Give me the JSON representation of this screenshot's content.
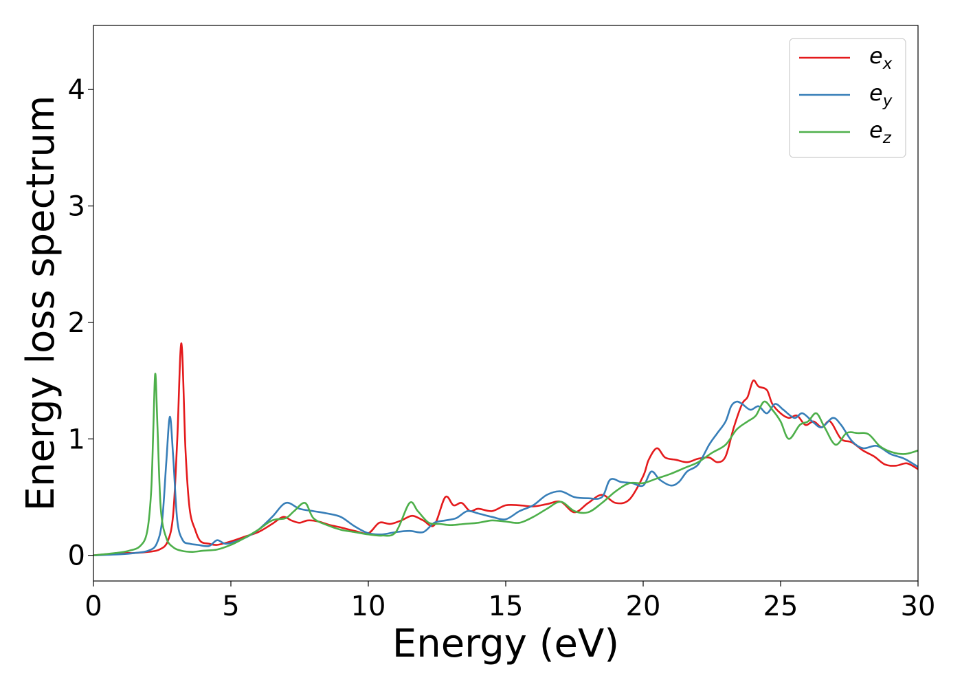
{
  "chart_data": {
    "type": "line",
    "title": "",
    "xlabel": "Energy (eV)",
    "ylabel": "Energy loss spectrum",
    "xlim": [
      0,
      30
    ],
    "ylim": [
      -0.22,
      4.55
    ],
    "xticks": [
      0,
      5,
      10,
      15,
      20,
      25,
      30
    ],
    "xtick_labels": [
      "0",
      "5",
      "10",
      "15",
      "20",
      "25",
      "30"
    ],
    "yticks": [
      0,
      1,
      2,
      3,
      4
    ],
    "ytick_labels": [
      "0",
      "1",
      "2",
      "3",
      "4"
    ],
    "grid": false,
    "legend_position": "top-right",
    "series": [
      {
        "name": "e",
        "subscript": "x",
        "color": "#e41a1c",
        "x": [
          0,
          1,
          1.5,
          2,
          2.4,
          2.7,
          2.9,
          3.05,
          3.2,
          3.35,
          3.5,
          3.7,
          3.9,
          4.2,
          4.5,
          5,
          5.5,
          6,
          6.5,
          6.9,
          7.2,
          7.5,
          7.8,
          8.2,
          8.6,
          9,
          9.5,
          10,
          10.4,
          10.8,
          11.2,
          11.6,
          12,
          12.4,
          12.8,
          13.1,
          13.4,
          13.7,
          14,
          14.5,
          15,
          15.5,
          16,
          16.5,
          17,
          17.5,
          18,
          18.5,
          19,
          19.5,
          20,
          20.2,
          20.5,
          20.8,
          21.2,
          21.6,
          22,
          22.4,
          22.7,
          23,
          23.3,
          23.6,
          23.8,
          24,
          24.2,
          24.5,
          24.7,
          25,
          25.3,
          25.6,
          25.9,
          26.2,
          26.5,
          26.8,
          27.2,
          27.6,
          28,
          28.4,
          28.8,
          29.2,
          29.6,
          30
        ],
        "y": [
          0,
          0.02,
          0.02,
          0.03,
          0.05,
          0.12,
          0.35,
          1.0,
          1.82,
          0.9,
          0.4,
          0.22,
          0.12,
          0.1,
          0.09,
          0.12,
          0.16,
          0.2,
          0.27,
          0.33,
          0.3,
          0.28,
          0.3,
          0.29,
          0.26,
          0.24,
          0.21,
          0.19,
          0.28,
          0.27,
          0.3,
          0.34,
          0.3,
          0.26,
          0.5,
          0.43,
          0.45,
          0.38,
          0.4,
          0.38,
          0.43,
          0.43,
          0.42,
          0.44,
          0.46,
          0.37,
          0.45,
          0.52,
          0.45,
          0.48,
          0.68,
          0.82,
          0.92,
          0.84,
          0.82,
          0.8,
          0.83,
          0.84,
          0.8,
          0.85,
          1.1,
          1.3,
          1.36,
          1.5,
          1.45,
          1.42,
          1.3,
          1.22,
          1.18,
          1.2,
          1.12,
          1.15,
          1.1,
          1.15,
          1.0,
          0.97,
          0.9,
          0.85,
          0.78,
          0.77,
          0.79,
          0.74
        ]
      },
      {
        "name": "e",
        "subscript": "y",
        "color": "#377eb8",
        "x": [
          0,
          1,
          1.5,
          2,
          2.3,
          2.5,
          2.65,
          2.78,
          2.9,
          3.05,
          3.25,
          3.5,
          3.8,
          4.2,
          4.5,
          4.8,
          5.2,
          5.6,
          6,
          6.5,
          7,
          7.5,
          8,
          8.5,
          9,
          9.5,
          10,
          10.5,
          11,
          11.5,
          12,
          12.4,
          12.8,
          13.2,
          13.6,
          14,
          14.5,
          15,
          15.5,
          16,
          16.5,
          17,
          17.5,
          18,
          18.5,
          18.8,
          19.2,
          19.6,
          20,
          20.3,
          20.6,
          21,
          21.3,
          21.6,
          22,
          22.4,
          22.7,
          23,
          23.2,
          23.4,
          23.6,
          23.9,
          24.2,
          24.5,
          24.8,
          25.1,
          25.5,
          25.8,
          26.2,
          26.5,
          26.9,
          27.2,
          27.6,
          28,
          28.5,
          29,
          29.5,
          30
        ],
        "y": [
          0,
          0.01,
          0.02,
          0.04,
          0.1,
          0.3,
          0.8,
          1.19,
          0.85,
          0.3,
          0.13,
          0.1,
          0.09,
          0.08,
          0.13,
          0.1,
          0.12,
          0.16,
          0.22,
          0.33,
          0.45,
          0.4,
          0.38,
          0.36,
          0.33,
          0.25,
          0.19,
          0.18,
          0.2,
          0.21,
          0.2,
          0.28,
          0.3,
          0.32,
          0.38,
          0.36,
          0.33,
          0.31,
          0.38,
          0.43,
          0.52,
          0.55,
          0.5,
          0.49,
          0.5,
          0.65,
          0.63,
          0.62,
          0.6,
          0.72,
          0.65,
          0.6,
          0.63,
          0.72,
          0.78,
          0.95,
          1.05,
          1.15,
          1.28,
          1.32,
          1.3,
          1.25,
          1.28,
          1.22,
          1.3,
          1.25,
          1.18,
          1.22,
          1.14,
          1.1,
          1.18,
          1.12,
          0.98,
          0.92,
          0.94,
          0.87,
          0.83,
          0.76
        ]
      },
      {
        "name": "e",
        "subscript": "z",
        "color": "#4daf4a",
        "x": [
          0,
          0.8,
          1.3,
          1.7,
          1.95,
          2.1,
          2.18,
          2.25,
          2.33,
          2.45,
          2.65,
          2.9,
          3.2,
          3.6,
          4,
          4.5,
          5,
          5.5,
          6,
          6.5,
          7,
          7.3,
          7.7,
          8,
          8.5,
          9,
          9.5,
          10,
          10.5,
          11,
          11.5,
          11.8,
          12.2,
          12.6,
          13,
          13.5,
          14,
          14.5,
          15,
          15.5,
          16,
          16.5,
          17,
          17.5,
          18,
          18.5,
          19,
          19.5,
          20,
          20.5,
          21,
          21.5,
          22,
          22.5,
          23,
          23.4,
          23.8,
          24.1,
          24.4,
          24.7,
          25,
          25.3,
          25.7,
          26,
          26.3,
          26.6,
          27,
          27.4,
          27.8,
          28.2,
          28.6,
          29,
          29.5,
          30
        ],
        "y": [
          0,
          0.02,
          0.04,
          0.08,
          0.2,
          0.55,
          1.1,
          1.56,
          1.1,
          0.4,
          0.15,
          0.07,
          0.04,
          0.03,
          0.04,
          0.05,
          0.09,
          0.15,
          0.22,
          0.3,
          0.32,
          0.38,
          0.45,
          0.32,
          0.26,
          0.22,
          0.2,
          0.18,
          0.17,
          0.2,
          0.45,
          0.38,
          0.28,
          0.27,
          0.26,
          0.27,
          0.28,
          0.3,
          0.29,
          0.28,
          0.33,
          0.4,
          0.46,
          0.38,
          0.37,
          0.45,
          0.55,
          0.62,
          0.62,
          0.66,
          0.7,
          0.75,
          0.8,
          0.88,
          0.95,
          1.08,
          1.15,
          1.2,
          1.32,
          1.25,
          1.15,
          1.0,
          1.12,
          1.15,
          1.22,
          1.1,
          0.95,
          1.05,
          1.05,
          1.04,
          0.94,
          0.89,
          0.87,
          0.9
        ]
      }
    ]
  }
}
